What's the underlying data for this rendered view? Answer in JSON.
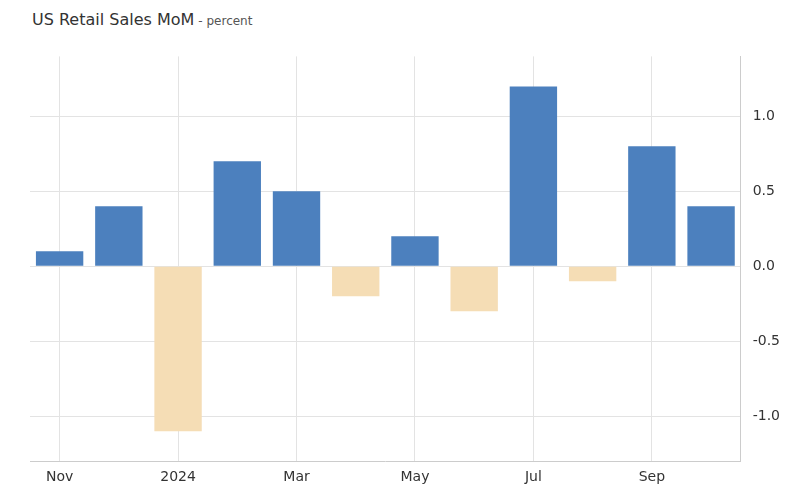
{
  "chart_data": {
    "type": "bar",
    "title": "US Retail Sales MoM",
    "subtitle": "- percent",
    "categories": [
      "Nov",
      null,
      "2024",
      null,
      "Mar",
      null,
      "May",
      null,
      "Jul",
      null,
      "Sep",
      null
    ],
    "values": [
      0.1,
      0.4,
      -1.1,
      0.7,
      0.5,
      -0.2,
      0.2,
      -0.3,
      1.2,
      -0.1,
      0.8,
      0.4
    ],
    "colors": [
      "#4c80be",
      "#4c80be",
      "#f5ddb5",
      "#4c80be",
      "#4c80be",
      "#f5ddb5",
      "#4c80be",
      "#f5ddb5",
      "#4c80be",
      "#f5ddb5",
      "#4c80be",
      "#4c80be"
    ],
    "ylim": [
      -1.3,
      1.4
    ],
    "yticks": [
      {
        "value": -1,
        "label": "-1.0"
      },
      -0.5,
      {
        "value": 0,
        "label": "0.0"
      },
      0.5,
      {
        "value": 1,
        "label": "1.0"
      }
    ],
    "grid": true
  }
}
